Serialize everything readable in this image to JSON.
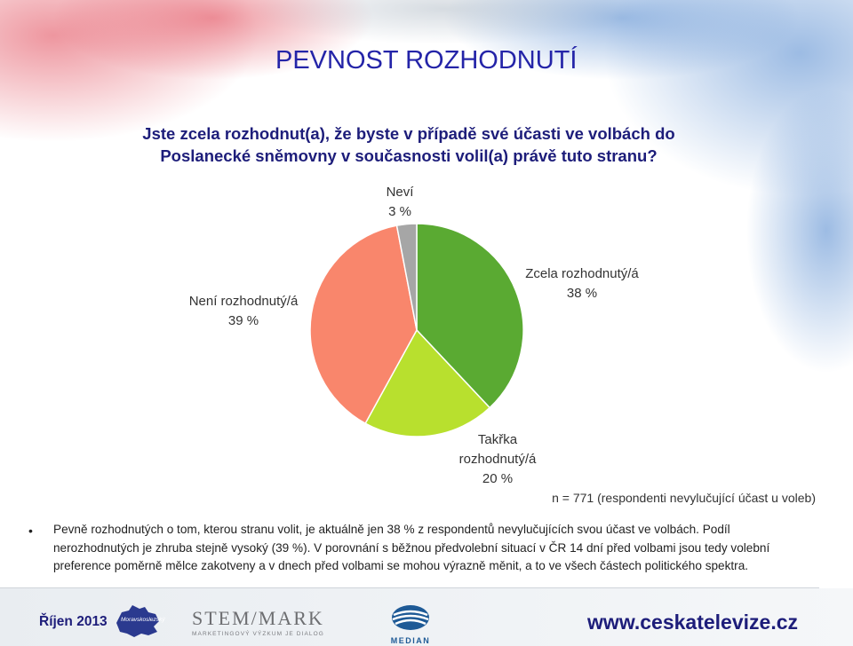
{
  "slide": {
    "title": "PEVNOST ROZHODNUTÍ",
    "question": "Jste zcela rozhodnut(a), že byste v případě své účasti ve volbách do Poslanecké sněmovny v současnosti volil(a) právě tuto stranu?",
    "sample_note": "n = 771 (respondenti nevylučující účast u voleb)",
    "bullet_text": "Pevně rozhodnutých o tom, kterou stranu volit, je aktuálně jen 38 % z respondentů nevylučujících svou účast ve volbách. Podíl nerozhodnutých je zhruba stejně vysoký (39 %). V porovnání s běžnou předvolební situací v ČR 14 dní před volbami jsou tedy volební preference poměrně mělce zakotveny a v dnech před volbami se mohou výrazně měnit, a to ve všech částech politického spektra."
  },
  "chart_data": {
    "type": "pie",
    "slices": [
      {
        "label": "Zcela rozhodnutý/á",
        "value": 38,
        "value_text": "38 %",
        "color": "#5aaa32"
      },
      {
        "label": "Takřka rozhodnutý/á",
        "value": 20,
        "value_text": "20 %",
        "color": "#b8e02e"
      },
      {
        "label": "Není rozhodnutý/á",
        "value": 39,
        "value_text": "39 %",
        "color": "#f9866c"
      },
      {
        "label": "Neví",
        "value": 3,
        "value_text": "3 %",
        "color": "#a6a6a6"
      }
    ]
  },
  "footer": {
    "date": "Říjen 2013",
    "region_logo_text": "Moravskoslezský",
    "stem_name": "STEM/MARK",
    "stem_tagline": "MARKETINGOVÝ VÝZKUM JE DIALOG",
    "median_name": "MEDIAN",
    "url": "www.ceskatelevize.cz"
  }
}
